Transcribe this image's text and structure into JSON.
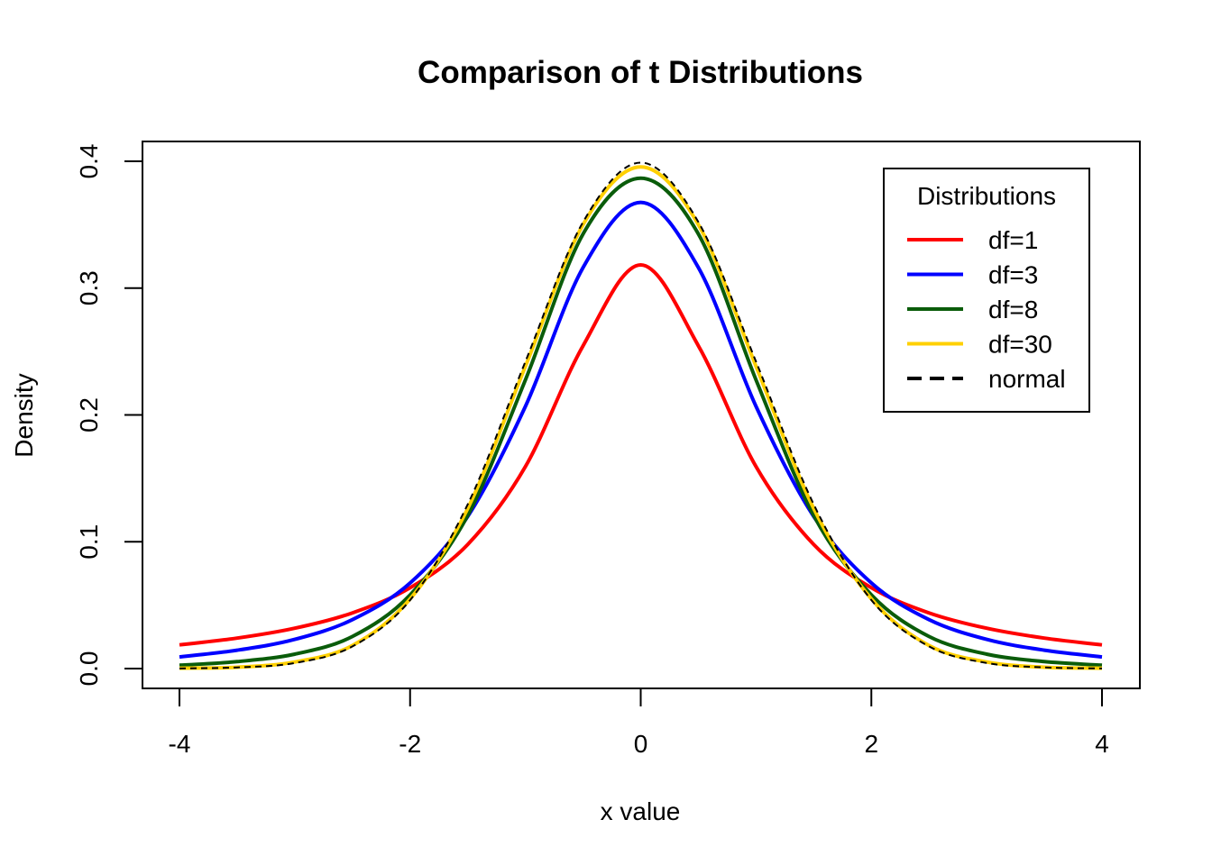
{
  "chart_data": {
    "type": "line",
    "title": "Comparison of t Distributions",
    "xlabel": "x value",
    "ylabel": "Density",
    "xlim": [
      -4,
      4
    ],
    "ylim": [
      0,
      0.4
    ],
    "x_ticks": [
      "-4",
      "-2",
      "0",
      "2",
      "4"
    ],
    "y_ticks": [
      "0.0",
      "0.1",
      "0.2",
      "0.3",
      "0.4"
    ],
    "grid": false,
    "legend": {
      "title": "Distributions",
      "position": "top-right"
    },
    "x": [
      -4,
      -3.5,
      -3,
      -2.5,
      -2,
      -1.5,
      -1,
      -0.5,
      0,
      0.5,
      1,
      1.5,
      2,
      2.5,
      3,
      3.5,
      4
    ],
    "series": [
      {
        "name": "df=1",
        "color": "#ff0000",
        "dash": "solid",
        "values": [
          0.0187,
          0.024,
          0.0318,
          0.0439,
          0.0637,
          0.0979,
          0.1592,
          0.2546,
          0.3183,
          0.2546,
          0.1592,
          0.0979,
          0.0637,
          0.0439,
          0.0318,
          0.024,
          0.0187
        ]
      },
      {
        "name": "df=3",
        "color": "#0000ff",
        "dash": "solid",
        "values": [
          0.0092,
          0.0145,
          0.023,
          0.0386,
          0.0675,
          0.12,
          0.2067,
          0.3162,
          0.3676,
          0.3162,
          0.2067,
          0.12,
          0.0675,
          0.0386,
          0.023,
          0.0145,
          0.0092
        ]
      },
      {
        "name": "df=8",
        "color": "#0a5c0a",
        "dash": "solid",
        "values": [
          0.0026,
          0.0055,
          0.0114,
          0.0253,
          0.0581,
          0.1208,
          0.2276,
          0.3427,
          0.3867,
          0.3427,
          0.2276,
          0.1208,
          0.0581,
          0.0253,
          0.0114,
          0.0055,
          0.0026
        ]
      },
      {
        "name": "df=30",
        "color": "#ffd000",
        "dash": "solid",
        "values": [
          0.0003,
          0.0011,
          0.0052,
          0.0182,
          0.0549,
          0.1263,
          0.2383,
          0.3501,
          0.3956,
          0.3501,
          0.2383,
          0.1263,
          0.0549,
          0.0182,
          0.0052,
          0.0011,
          0.0003
        ]
      },
      {
        "name": "normal",
        "color": "#000000",
        "dash": "dashed",
        "values": [
          0.0001,
          0.0009,
          0.0044,
          0.0175,
          0.054,
          0.1295,
          0.242,
          0.3521,
          0.3989,
          0.3521,
          0.242,
          0.1295,
          0.054,
          0.0175,
          0.0044,
          0.0009,
          0.0001
        ]
      }
    ]
  }
}
